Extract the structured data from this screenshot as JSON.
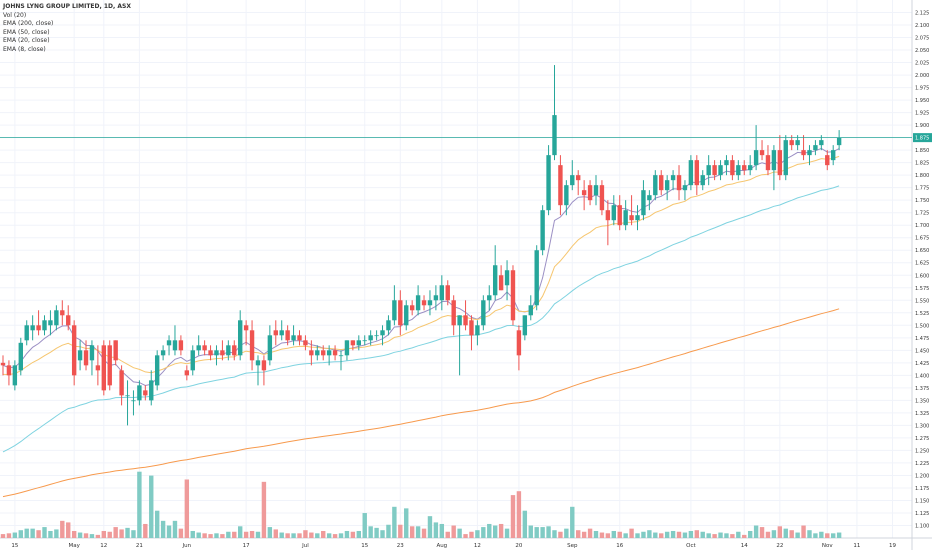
{
  "legend": {
    "title": "JOHNS LYNG GROUP LIMITED, 1D, ASX",
    "lines": [
      "Vol (20)",
      "EMA (200, close)",
      "EMA (50, close)",
      "EMA (20, close)",
      "EMA (8, close)"
    ]
  },
  "colors": {
    "up": "#26a69a",
    "down": "#ef5350",
    "vol_up": "#80cbc4",
    "vol_down": "#ef9a9a",
    "ema200": "#f79a4d",
    "ema50": "#7fd3e0",
    "ema20": "#f6c66f",
    "ema8": "#9b8fc4",
    "last_price_line": "#26a69a",
    "grid": "#f0f3fa",
    "axis_text": "#333333"
  },
  "chart_data": {
    "type": "candlestick",
    "ylim": [
      1.075,
      2.15
    ],
    "y_ticks": [
      "1.100",
      "1.125",
      "1.150",
      "1.175",
      "1.200",
      "1.225",
      "1.250",
      "1.275",
      "1.300",
      "1.325",
      "1.350",
      "1.375",
      "1.400",
      "1.425",
      "1.450",
      "1.475",
      "1.500",
      "1.525",
      "1.550",
      "1.575",
      "1.600",
      "1.625",
      "1.650",
      "1.675",
      "1.700",
      "1.725",
      "1.750",
      "1.775",
      "1.800",
      "1.825",
      "1.850",
      "1.875",
      "1.900",
      "1.925",
      "1.950",
      "1.975",
      "2.000",
      "2.025",
      "2.050",
      "2.075",
      "2.100",
      "2.125"
    ],
    "x_ticks": [
      {
        "label": "15",
        "i": 2
      },
      {
        "label": "May",
        "i": 12
      },
      {
        "label": "12",
        "i": 17
      },
      {
        "label": "21",
        "i": 23
      },
      {
        "label": "Jun",
        "i": 31
      },
      {
        "label": "17",
        "i": 41
      },
      {
        "label": "Jul",
        "i": 51
      },
      {
        "label": "15",
        "i": 61
      },
      {
        "label": "23",
        "i": 67
      },
      {
        "label": "Aug",
        "i": 74
      },
      {
        "label": "12",
        "i": 80
      },
      {
        "label": "20",
        "i": 87
      },
      {
        "label": "Sep",
        "i": 96
      },
      {
        "label": "16",
        "i": 104
      },
      {
        "label": "Oct",
        "i": 116
      },
      {
        "label": "14",
        "i": 125
      },
      {
        "label": "22",
        "i": 131
      },
      {
        "label": "Nov",
        "i": 139
      },
      {
        "label": "11",
        "i": 144
      },
      {
        "label": "19",
        "i": 150
      }
    ],
    "last_price": 1.875,
    "last_price_label": "1.875",
    "volume_max": 100,
    "bars": [
      {
        "o": 1.425,
        "h": 1.44,
        "l": 1.4,
        "c": 1.42,
        "v": 5
      },
      {
        "o": 1.42,
        "h": 1.43,
        "l": 1.38,
        "c": 1.4,
        "v": 6
      },
      {
        "o": 1.38,
        "h": 1.43,
        "l": 1.37,
        "c": 1.42,
        "v": 7
      },
      {
        "o": 1.41,
        "h": 1.475,
        "l": 1.4,
        "c": 1.465,
        "v": 10
      },
      {
        "o": 1.47,
        "h": 1.51,
        "l": 1.46,
        "c": 1.5,
        "v": 12
      },
      {
        "o": 1.49,
        "h": 1.52,
        "l": 1.47,
        "c": 1.5,
        "v": 12
      },
      {
        "o": 1.5,
        "h": 1.53,
        "l": 1.48,
        "c": 1.49,
        "v": 10
      },
      {
        "o": 1.49,
        "h": 1.52,
        "l": 1.48,
        "c": 1.51,
        "v": 14
      },
      {
        "o": 1.5,
        "h": 1.53,
        "l": 1.48,
        "c": 1.51,
        "v": 9
      },
      {
        "o": 1.5,
        "h": 1.54,
        "l": 1.49,
        "c": 1.53,
        "v": 11
      },
      {
        "o": 1.53,
        "h": 1.55,
        "l": 1.5,
        "c": 1.52,
        "v": 22
      },
      {
        "o": 1.52,
        "h": 1.54,
        "l": 1.49,
        "c": 1.5,
        "v": 20
      },
      {
        "o": 1.5,
        "h": 1.51,
        "l": 1.38,
        "c": 1.4,
        "v": 9
      },
      {
        "o": 1.43,
        "h": 1.47,
        "l": 1.41,
        "c": 1.45,
        "v": 7
      },
      {
        "o": 1.45,
        "h": 1.47,
        "l": 1.41,
        "c": 1.42,
        "v": 6
      },
      {
        "o": 1.43,
        "h": 1.47,
        "l": 1.4,
        "c": 1.46,
        "v": 5
      },
      {
        "o": 1.42,
        "h": 1.46,
        "l": 1.38,
        "c": 1.41,
        "v": 4
      },
      {
        "o": 1.46,
        "h": 1.47,
        "l": 1.36,
        "c": 1.37,
        "v": 9
      },
      {
        "o": 1.46,
        "h": 1.47,
        "l": 1.37,
        "c": 1.38,
        "v": 8
      },
      {
        "o": 1.47,
        "h": 1.47,
        "l": 1.42,
        "c": 1.43,
        "v": 14
      },
      {
        "o": 1.41,
        "h": 1.42,
        "l": 1.34,
        "c": 1.36,
        "v": 11
      },
      {
        "o": 1.36,
        "h": 1.39,
        "l": 1.3,
        "c": 1.36,
        "v": 13
      },
      {
        "o": 1.35,
        "h": 1.37,
        "l": 1.32,
        "c": 1.35,
        "v": 10
      },
      {
        "o": 1.35,
        "h": 1.39,
        "l": 1.34,
        "c": 1.38,
        "v": 85
      },
      {
        "o": 1.37,
        "h": 1.38,
        "l": 1.35,
        "c": 1.36,
        "v": 18
      },
      {
        "o": 1.35,
        "h": 1.41,
        "l": 1.34,
        "c": 1.39,
        "v": 80
      },
      {
        "o": 1.38,
        "h": 1.45,
        "l": 1.37,
        "c": 1.44,
        "v": 35
      },
      {
        "o": 1.44,
        "h": 1.46,
        "l": 1.43,
        "c": 1.45,
        "v": 22
      },
      {
        "o": 1.46,
        "h": 1.48,
        "l": 1.44,
        "c": 1.47,
        "v": 16
      },
      {
        "o": 1.45,
        "h": 1.5,
        "l": 1.44,
        "c": 1.47,
        "v": 22
      },
      {
        "o": 1.47,
        "h": 1.48,
        "l": 1.44,
        "c": 1.45,
        "v": 12
      },
      {
        "o": 1.41,
        "h": 1.42,
        "l": 1.39,
        "c": 1.4,
        "v": 75
      },
      {
        "o": 1.41,
        "h": 1.46,
        "l": 1.4,
        "c": 1.45,
        "v": 9
      },
      {
        "o": 1.45,
        "h": 1.48,
        "l": 1.44,
        "c": 1.46,
        "v": 7
      },
      {
        "o": 1.46,
        "h": 1.47,
        "l": 1.44,
        "c": 1.45,
        "v": 6
      },
      {
        "o": 1.45,
        "h": 1.46,
        "l": 1.43,
        "c": 1.44,
        "v": 5
      },
      {
        "o": 1.44,
        "h": 1.46,
        "l": 1.42,
        "c": 1.45,
        "v": 6
      },
      {
        "o": 1.45,
        "h": 1.47,
        "l": 1.43,
        "c": 1.44,
        "v": 5
      },
      {
        "o": 1.44,
        "h": 1.47,
        "l": 1.43,
        "c": 1.46,
        "v": 8
      },
      {
        "o": 1.46,
        "h": 1.47,
        "l": 1.43,
        "c": 1.44,
        "v": 8
      },
      {
        "o": 1.44,
        "h": 1.53,
        "l": 1.43,
        "c": 1.51,
        "v": 15
      },
      {
        "o": 1.5,
        "h": 1.51,
        "l": 1.46,
        "c": 1.49,
        "v": 8
      },
      {
        "o": 1.49,
        "h": 1.51,
        "l": 1.41,
        "c": 1.43,
        "v": 9
      },
      {
        "o": 1.42,
        "h": 1.44,
        "l": 1.38,
        "c": 1.43,
        "v": 8
      },
      {
        "o": 1.43,
        "h": 1.44,
        "l": 1.38,
        "c": 1.41,
        "v": 72
      },
      {
        "o": 1.43,
        "h": 1.5,
        "l": 1.42,
        "c": 1.48,
        "v": 14
      },
      {
        "o": 1.49,
        "h": 1.51,
        "l": 1.46,
        "c": 1.48,
        "v": 11
      },
      {
        "o": 1.48,
        "h": 1.51,
        "l": 1.47,
        "c": 1.49,
        "v": 7
      },
      {
        "o": 1.49,
        "h": 1.5,
        "l": 1.46,
        "c": 1.47,
        "v": 6
      },
      {
        "o": 1.47,
        "h": 1.5,
        "l": 1.46,
        "c": 1.48,
        "v": 6
      },
      {
        "o": 1.48,
        "h": 1.49,
        "l": 1.46,
        "c": 1.47,
        "v": 6
      },
      {
        "o": 1.47,
        "h": 1.48,
        "l": 1.45,
        "c": 1.46,
        "v": 10
      },
      {
        "o": 1.45,
        "h": 1.47,
        "l": 1.42,
        "c": 1.44,
        "v": 7
      },
      {
        "o": 1.44,
        "h": 1.46,
        "l": 1.43,
        "c": 1.45,
        "v": 6
      },
      {
        "o": 1.45,
        "h": 1.46,
        "l": 1.43,
        "c": 1.44,
        "v": 9
      },
      {
        "o": 1.44,
        "h": 1.46,
        "l": 1.42,
        "c": 1.45,
        "v": 6
      },
      {
        "o": 1.45,
        "h": 1.46,
        "l": 1.43,
        "c": 1.44,
        "v": 5
      },
      {
        "o": 1.44,
        "h": 1.45,
        "l": 1.41,
        "c": 1.44,
        "v": 6
      },
      {
        "o": 1.44,
        "h": 1.47,
        "l": 1.43,
        "c": 1.47,
        "v": 9
      },
      {
        "o": 1.47,
        "h": 1.47,
        "l": 1.45,
        "c": 1.46,
        "v": 8
      },
      {
        "o": 1.46,
        "h": 1.48,
        "l": 1.45,
        "c": 1.47,
        "v": 9
      },
      {
        "o": 1.47,
        "h": 1.48,
        "l": 1.46,
        "c": 1.47,
        "v": 32
      },
      {
        "o": 1.47,
        "h": 1.49,
        "l": 1.46,
        "c": 1.48,
        "v": 15
      },
      {
        "o": 1.48,
        "h": 1.49,
        "l": 1.47,
        "c": 1.48,
        "v": 13
      },
      {
        "o": 1.48,
        "h": 1.5,
        "l": 1.46,
        "c": 1.49,
        "v": 10
      },
      {
        "o": 1.49,
        "h": 1.52,
        "l": 1.48,
        "c": 1.51,
        "v": 17
      },
      {
        "o": 1.51,
        "h": 1.58,
        "l": 1.5,
        "c": 1.55,
        "v": 40
      },
      {
        "o": 1.55,
        "h": 1.57,
        "l": 1.48,
        "c": 1.5,
        "v": 17
      },
      {
        "o": 1.5,
        "h": 1.55,
        "l": 1.49,
        "c": 1.54,
        "v": 38
      },
      {
        "o": 1.54,
        "h": 1.55,
        "l": 1.52,
        "c": 1.53,
        "v": 15
      },
      {
        "o": 1.53,
        "h": 1.58,
        "l": 1.52,
        "c": 1.56,
        "v": 15
      },
      {
        "o": 1.55,
        "h": 1.56,
        "l": 1.53,
        "c": 1.54,
        "v": 12
      },
      {
        "o": 1.54,
        "h": 1.57,
        "l": 1.52,
        "c": 1.55,
        "v": 28
      },
      {
        "o": 1.55,
        "h": 1.58,
        "l": 1.53,
        "c": 1.56,
        "v": 20
      },
      {
        "o": 1.55,
        "h": 1.6,
        "l": 1.53,
        "c": 1.58,
        "v": 18
      },
      {
        "o": 1.58,
        "h": 1.59,
        "l": 1.54,
        "c": 1.55,
        "v": 8
      },
      {
        "o": 1.55,
        "h": 1.56,
        "l": 1.48,
        "c": 1.5,
        "v": 16
      },
      {
        "o": 1.5,
        "h": 1.52,
        "l": 1.4,
        "c": 1.52,
        "v": 12
      },
      {
        "o": 1.52,
        "h": 1.55,
        "l": 1.49,
        "c": 1.5,
        "v": 5
      },
      {
        "o": 1.51,
        "h": 1.52,
        "l": 1.45,
        "c": 1.48,
        "v": 8
      },
      {
        "o": 1.48,
        "h": 1.51,
        "l": 1.46,
        "c": 1.5,
        "v": 10
      },
      {
        "o": 1.5,
        "h": 1.56,
        "l": 1.49,
        "c": 1.55,
        "v": 14
      },
      {
        "o": 1.55,
        "h": 1.58,
        "l": 1.53,
        "c": 1.56,
        "v": 18
      },
      {
        "o": 1.56,
        "h": 1.66,
        "l": 1.55,
        "c": 1.62,
        "v": 16
      },
      {
        "o": 1.6,
        "h": 1.62,
        "l": 1.57,
        "c": 1.57,
        "v": 18
      },
      {
        "o": 1.58,
        "h": 1.63,
        "l": 1.55,
        "c": 1.61,
        "v": 12
      },
      {
        "o": 1.61,
        "h": 1.62,
        "l": 1.5,
        "c": 1.51,
        "v": 55
      },
      {
        "o": 1.49,
        "h": 1.5,
        "l": 1.41,
        "c": 1.44,
        "v": 60
      },
      {
        "o": 1.48,
        "h": 1.52,
        "l": 1.47,
        "c": 1.52,
        "v": 35
      },
      {
        "o": 1.52,
        "h": 1.56,
        "l": 1.51,
        "c": 1.54,
        "v": 16
      },
      {
        "o": 1.54,
        "h": 1.66,
        "l": 1.53,
        "c": 1.65,
        "v": 14
      },
      {
        "o": 1.65,
        "h": 1.74,
        "l": 1.64,
        "c": 1.73,
        "v": 14
      },
      {
        "o": 1.73,
        "h": 1.86,
        "l": 1.72,
        "c": 1.84,
        "v": 15
      },
      {
        "o": 1.84,
        "h": 2.02,
        "l": 1.83,
        "c": 1.92,
        "v": 10
      },
      {
        "o": 1.82,
        "h": 1.84,
        "l": 1.72,
        "c": 1.74,
        "v": 8
      },
      {
        "o": 1.74,
        "h": 1.79,
        "l": 1.72,
        "c": 1.78,
        "v": 12
      },
      {
        "o": 1.78,
        "h": 1.83,
        "l": 1.77,
        "c": 1.8,
        "v": 40
      },
      {
        "o": 1.8,
        "h": 1.81,
        "l": 1.76,
        "c": 1.79,
        "v": 10
      },
      {
        "o": 1.77,
        "h": 1.79,
        "l": 1.73,
        "c": 1.76,
        "v": 8
      },
      {
        "o": 1.78,
        "h": 1.79,
        "l": 1.74,
        "c": 1.75,
        "v": 12
      },
      {
        "o": 1.76,
        "h": 1.8,
        "l": 1.74,
        "c": 1.78,
        "v": 9
      },
      {
        "o": 1.78,
        "h": 1.79,
        "l": 1.72,
        "c": 1.73,
        "v": 7
      },
      {
        "o": 1.73,
        "h": 1.75,
        "l": 1.66,
        "c": 1.71,
        "v": 6
      },
      {
        "o": 1.71,
        "h": 1.76,
        "l": 1.7,
        "c": 1.74,
        "v": 9
      },
      {
        "o": 1.74,
        "h": 1.76,
        "l": 1.69,
        "c": 1.7,
        "v": 8
      },
      {
        "o": 1.7,
        "h": 1.75,
        "l": 1.69,
        "c": 1.73,
        "v": 6
      },
      {
        "o": 1.72,
        "h": 1.76,
        "l": 1.7,
        "c": 1.71,
        "v": 12
      },
      {
        "o": 1.71,
        "h": 1.74,
        "l": 1.69,
        "c": 1.72,
        "v": 6
      },
      {
        "o": 1.72,
        "h": 1.79,
        "l": 1.71,
        "c": 1.77,
        "v": 8
      },
      {
        "o": 1.75,
        "h": 1.77,
        "l": 1.73,
        "c": 1.76,
        "v": 10
      },
      {
        "o": 1.76,
        "h": 1.81,
        "l": 1.75,
        "c": 1.8,
        "v": 7
      },
      {
        "o": 1.8,
        "h": 1.81,
        "l": 1.76,
        "c": 1.77,
        "v": 6
      },
      {
        "o": 1.77,
        "h": 1.8,
        "l": 1.75,
        "c": 1.79,
        "v": 8
      },
      {
        "o": 1.79,
        "h": 1.81,
        "l": 1.77,
        "c": 1.8,
        "v": 9
      },
      {
        "o": 1.8,
        "h": 1.82,
        "l": 1.75,
        "c": 1.77,
        "v": 8
      },
      {
        "o": 1.77,
        "h": 1.79,
        "l": 1.75,
        "c": 1.78,
        "v": 7
      },
      {
        "o": 1.78,
        "h": 1.84,
        "l": 1.77,
        "c": 1.83,
        "v": 9
      },
      {
        "o": 1.83,
        "h": 1.84,
        "l": 1.76,
        "c": 1.78,
        "v": 10
      },
      {
        "o": 1.78,
        "h": 1.81,
        "l": 1.77,
        "c": 1.8,
        "v": 8
      },
      {
        "o": 1.8,
        "h": 1.84,
        "l": 1.78,
        "c": 1.82,
        "v": 6
      },
      {
        "o": 1.82,
        "h": 1.83,
        "l": 1.79,
        "c": 1.8,
        "v": 5
      },
      {
        "o": 1.8,
        "h": 1.83,
        "l": 1.79,
        "c": 1.82,
        "v": 7
      },
      {
        "o": 1.82,
        "h": 1.84,
        "l": 1.8,
        "c": 1.83,
        "v": 6
      },
      {
        "o": 1.83,
        "h": 1.84,
        "l": 1.79,
        "c": 1.8,
        "v": 5
      },
      {
        "o": 1.8,
        "h": 1.83,
        "l": 1.79,
        "c": 1.82,
        "v": 8
      },
      {
        "o": 1.82,
        "h": 1.83,
        "l": 1.8,
        "c": 1.81,
        "v": 4
      },
      {
        "o": 1.81,
        "h": 1.84,
        "l": 1.8,
        "c": 1.82,
        "v": 9
      },
      {
        "o": 1.82,
        "h": 1.9,
        "l": 1.81,
        "c": 1.85,
        "v": 16
      },
      {
        "o": 1.85,
        "h": 1.87,
        "l": 1.83,
        "c": 1.84,
        "v": 14
      },
      {
        "o": 1.84,
        "h": 1.86,
        "l": 1.8,
        "c": 1.81,
        "v": 8
      },
      {
        "o": 1.81,
        "h": 1.86,
        "l": 1.77,
        "c": 1.85,
        "v": 10
      },
      {
        "o": 1.85,
        "h": 1.88,
        "l": 1.79,
        "c": 1.8,
        "v": 15
      },
      {
        "o": 1.8,
        "h": 1.88,
        "l": 1.79,
        "c": 1.87,
        "v": 12
      },
      {
        "o": 1.87,
        "h": 1.88,
        "l": 1.85,
        "c": 1.86,
        "v": 10
      },
      {
        "o": 1.86,
        "h": 1.88,
        "l": 1.85,
        "c": 1.87,
        "v": 7
      },
      {
        "o": 1.85,
        "h": 1.88,
        "l": 1.83,
        "c": 1.84,
        "v": 16
      },
      {
        "o": 1.84,
        "h": 1.86,
        "l": 1.82,
        "c": 1.85,
        "v": 10
      },
      {
        "o": 1.85,
        "h": 1.87,
        "l": 1.84,
        "c": 1.86,
        "v": 6
      },
      {
        "o": 1.86,
        "h": 1.88,
        "l": 1.85,
        "c": 1.87,
        "v": 8
      },
      {
        "o": 1.84,
        "h": 1.85,
        "l": 1.81,
        "c": 1.82,
        "v": 6
      },
      {
        "o": 1.83,
        "h": 1.86,
        "l": 1.82,
        "c": 1.85,
        "v": 6
      },
      {
        "o": 1.86,
        "h": 1.89,
        "l": 1.85,
        "c": 1.875,
        "v": 7
      }
    ]
  }
}
